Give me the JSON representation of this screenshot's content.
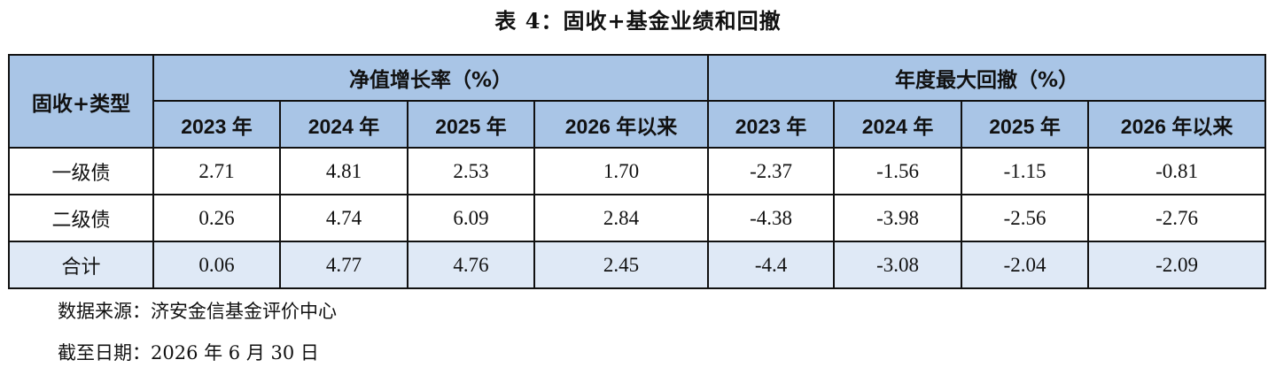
{
  "title": "表 4：固收+基金业绩和回撤",
  "table": {
    "category_header": "固收+类型",
    "groups": [
      "净值增长率（%）",
      "年度最大回撤（%）"
    ],
    "period_headers": [
      "2023 年",
      "2024 年",
      "2025 年",
      "2026 年以来",
      "2023 年",
      "2024 年",
      "2025 年",
      "2026 年以来"
    ],
    "rows": [
      {
        "label": "一级债",
        "cells": [
          "2.71",
          "4.81",
          "2.53",
          "1.70",
          "-2.37",
          "-1.56",
          "-1.15",
          "-0.81"
        ]
      },
      {
        "label": "二级债",
        "cells": [
          "0.26",
          "4.74",
          "6.09",
          "2.84",
          "-4.38",
          "-3.98",
          "-2.56",
          "-2.76"
        ]
      },
      {
        "label": "合计",
        "cells": [
          "0.06",
          "4.77",
          "4.76",
          "2.45",
          "-4.4",
          "-3.08",
          "-2.04",
          "-2.09"
        ]
      }
    ]
  },
  "notes": {
    "source": "数据来源：济安金信基金评价中心",
    "cutoff": "截至日期：2026 年 6 月 30 日"
  },
  "colors": {
    "header_bg": "#a9c5e6",
    "total_row_bg": "#dfe9f6",
    "border": "#111111"
  }
}
